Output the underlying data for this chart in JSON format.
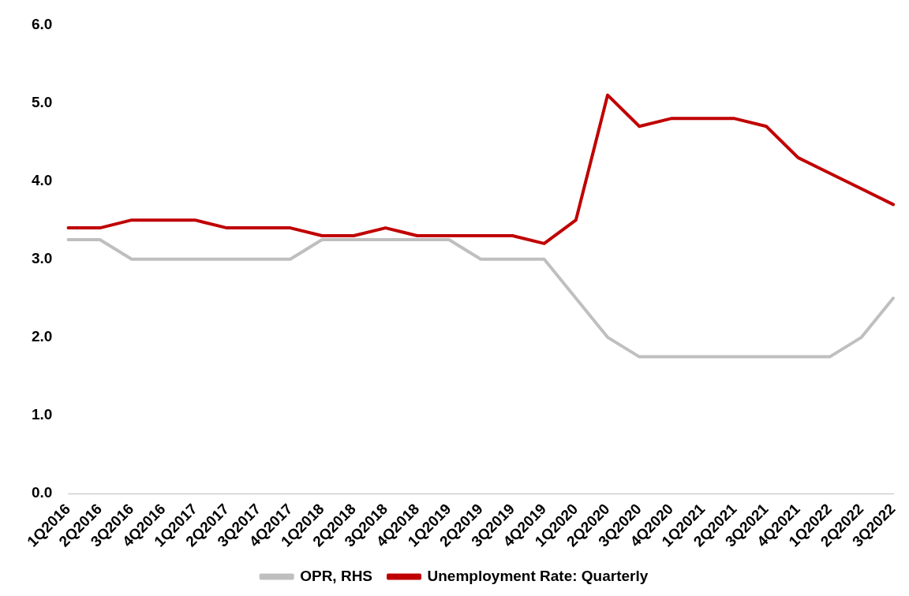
{
  "chart_data": {
    "type": "line",
    "categories": [
      "1Q2016",
      "2Q2016",
      "3Q2016",
      "4Q2016",
      "1Q2017",
      "2Q2017",
      "3Q2017",
      "4Q2017",
      "1Q2018",
      "2Q2018",
      "3Q2018",
      "4Q2018",
      "1Q2019",
      "2Q2019",
      "3Q2019",
      "4Q2019",
      "1Q2020",
      "2Q2020",
      "3Q2020",
      "4Q2020",
      "1Q2021",
      "2Q2021",
      "3Q2021",
      "4Q2021",
      "1Q2022",
      "2Q2022",
      "3Q2022"
    ],
    "series": [
      {
        "name": "OPR, RHS",
        "color": "#bfbfbf",
        "values": [
          3.25,
          3.25,
          3.0,
          3.0,
          3.0,
          3.0,
          3.0,
          3.0,
          3.25,
          3.25,
          3.25,
          3.25,
          3.25,
          3.0,
          3.0,
          3.0,
          2.5,
          2.0,
          1.75,
          1.75,
          1.75,
          1.75,
          1.75,
          1.75,
          1.75,
          2.0,
          2.5
        ]
      },
      {
        "name": "Unemployment Rate: Quarterly",
        "color": "#c00000",
        "values": [
          3.4,
          3.4,
          3.5,
          3.5,
          3.5,
          3.4,
          3.4,
          3.4,
          3.3,
          3.3,
          3.4,
          3.3,
          3.3,
          3.3,
          3.3,
          3.2,
          3.5,
          5.1,
          4.7,
          4.8,
          4.8,
          4.8,
          4.7,
          4.3,
          4.1,
          3.9,
          3.7
        ]
      }
    ],
    "ylim": [
      0,
      6
    ],
    "yticks": [
      {
        "value": 0,
        "label": "0.0"
      },
      {
        "value": 1,
        "label": "1.0"
      },
      {
        "value": 2,
        "label": "2.0"
      },
      {
        "value": 3,
        "label": "3.0"
      },
      {
        "value": 4,
        "label": "4.0"
      },
      {
        "value": 5,
        "label": "5.0"
      },
      {
        "value": 6,
        "label": "6.0"
      }
    ],
    "grid": false,
    "legend": "bottom",
    "marker": "none",
    "line_style": "solid"
  }
}
